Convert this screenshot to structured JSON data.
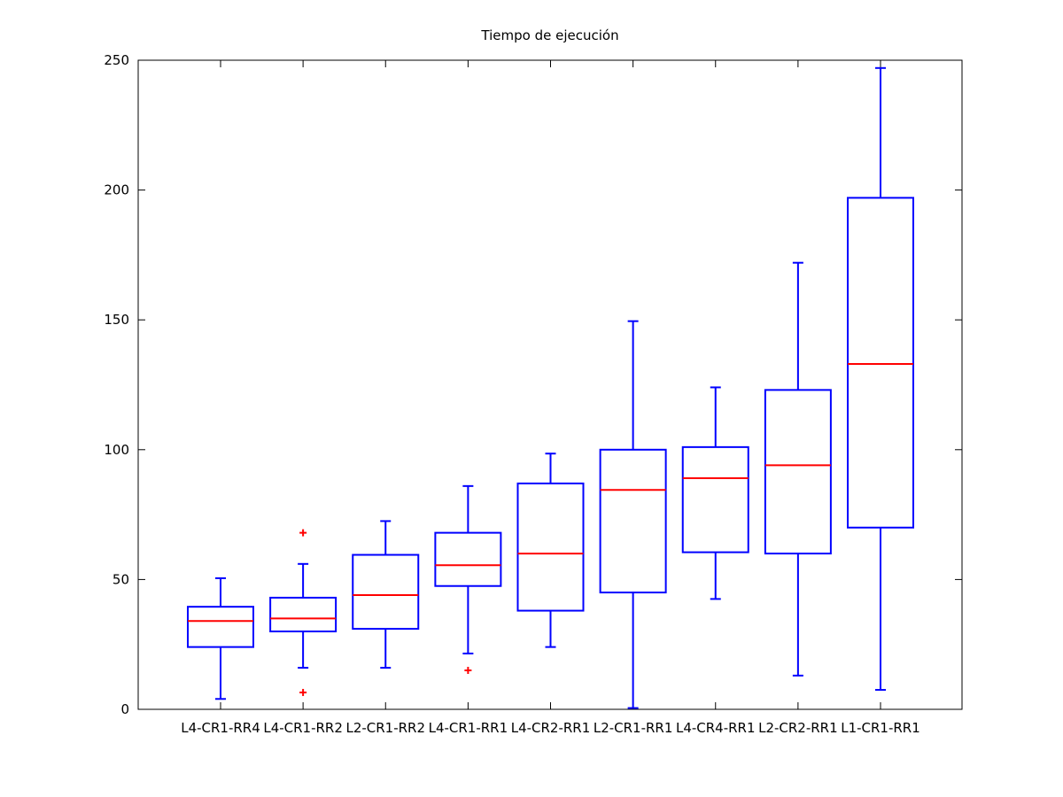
{
  "chart_data": {
    "type": "boxplot",
    "title": "Tiempo de ejecución",
    "xlabel": "",
    "ylabel": "",
    "ylim": [
      0,
      250
    ],
    "yticks": [
      0,
      50,
      100,
      150,
      200,
      250
    ],
    "grid": false,
    "colors": {
      "box": "#0000ff",
      "median": "#ff0000",
      "outlier": "#ff0000",
      "axis": "#000000"
    },
    "categories": [
      "L4-CR1-RR4",
      "L4-CR1-RR2",
      "L2-CR1-RR2",
      "L4-CR1-RR1",
      "L4-CR2-RR1",
      "L2-CR1-RR1",
      "L4-CR4-RR1",
      "L2-CR2-RR1",
      "L1-CR1-RR1"
    ],
    "boxes": [
      {
        "whisker_low": 4,
        "q1": 24,
        "median": 34,
        "q3": 39.5,
        "whisker_high": 50.5,
        "outliers": []
      },
      {
        "whisker_low": 16,
        "q1": 30,
        "median": 35,
        "q3": 43,
        "whisker_high": 56,
        "outliers": [
          6.5,
          68
        ]
      },
      {
        "whisker_low": 16,
        "q1": 31,
        "median": 44,
        "q3": 59.5,
        "whisker_high": 72.5,
        "outliers": []
      },
      {
        "whisker_low": 21.5,
        "q1": 47.5,
        "median": 55.5,
        "q3": 68,
        "whisker_high": 86,
        "outliers": [
          15
        ]
      },
      {
        "whisker_low": 24,
        "q1": 38,
        "median": 60,
        "q3": 87,
        "whisker_high": 98.5,
        "outliers": []
      },
      {
        "whisker_low": 0.5,
        "q1": 45,
        "median": 84.5,
        "q3": 100,
        "whisker_high": 149.5,
        "outliers": []
      },
      {
        "whisker_low": 42.5,
        "q1": 60.5,
        "median": 89,
        "q3": 101,
        "whisker_high": 124,
        "outliers": []
      },
      {
        "whisker_low": 13,
        "q1": 60,
        "median": 94,
        "q3": 123,
        "whisker_high": 172,
        "outliers": []
      },
      {
        "whisker_low": 7.5,
        "q1": 70,
        "median": 133,
        "q3": 197,
        "whisker_high": 247,
        "outliers": []
      }
    ]
  }
}
